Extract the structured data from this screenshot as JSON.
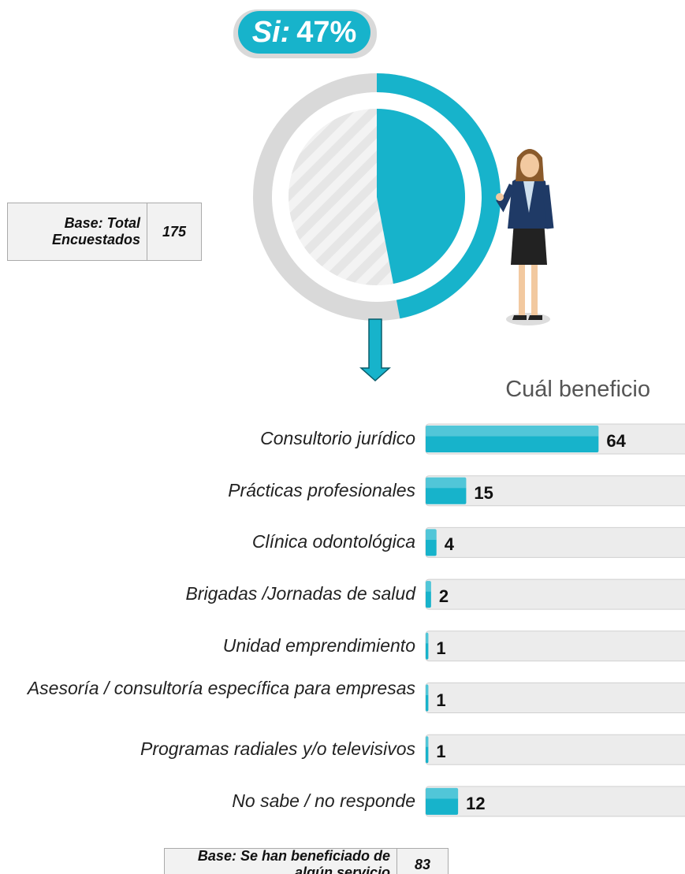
{
  "chart_data": [
    {
      "type": "donut",
      "categories": [
        "Si:"
      ],
      "values": [
        47
      ],
      "value_labels": [
        "47%"
      ],
      "color": "#17b3cb",
      "base": {
        "label": "Base: Total Encuestados",
        "value": "175"
      }
    },
    {
      "type": "hbar",
      "title": "Cuál beneficio",
      "categories": [
        "Consultorio jurídico",
        "Prácticas profesionales",
        "Clínica odontológica",
        "Brigadas /Jornadas de salud",
        "Unidad emprendimiento",
        "Asesoría / consultoría específica para empresas",
        "Programas radiales y/o televisivos",
        "No sabe / no responde"
      ],
      "values": [
        64,
        15,
        4,
        2,
        1,
        1,
        1,
        12
      ],
      "color": "#17b3cb",
      "xlim": [
        0,
        96
      ],
      "base": {
        "label": "Base: Se han beneficiado de algún servicio",
        "value": "83"
      }
    }
  ]
}
